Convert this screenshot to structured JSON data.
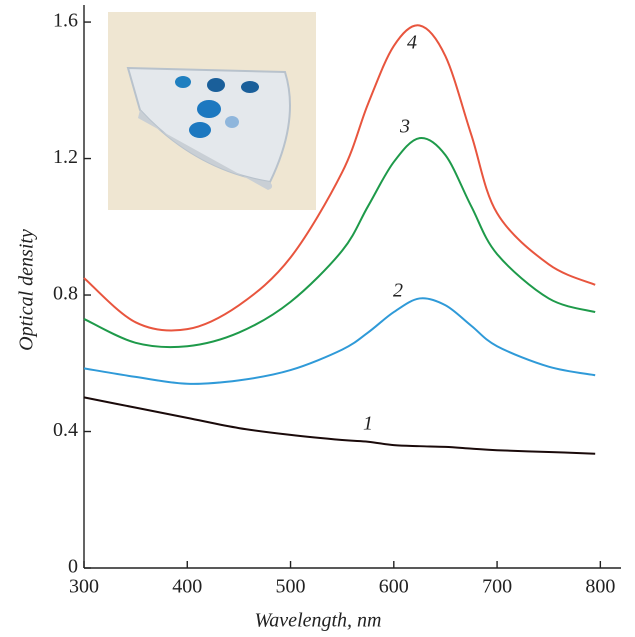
{
  "chart_data": {
    "type": "line",
    "xlabel": "Wavelength, nm",
    "ylabel": "Optical density",
    "x": [
      300,
      350,
      400,
      450,
      500,
      550,
      575,
      600,
      625,
      650,
      675,
      700,
      750,
      795
    ],
    "series": [
      {
        "name": "1",
        "color": "#1a0a0a",
        "values": [
          0.5,
          0.47,
          0.44,
          0.41,
          0.39,
          0.375,
          0.37,
          0.36,
          0.357,
          0.355,
          0.35,
          0.345,
          0.34,
          0.335
        ]
      },
      {
        "name": "2",
        "color": "#2f9ad8",
        "values": [
          0.585,
          0.56,
          0.54,
          0.55,
          0.58,
          0.64,
          0.69,
          0.75,
          0.79,
          0.77,
          0.71,
          0.65,
          0.59,
          0.565
        ]
      },
      {
        "name": "3",
        "color": "#1e9a4a",
        "values": [
          0.73,
          0.66,
          0.65,
          0.69,
          0.78,
          0.93,
          1.06,
          1.19,
          1.26,
          1.21,
          1.06,
          0.92,
          0.79,
          0.75
        ]
      },
      {
        "name": "4",
        "color": "#e8553e",
        "values": [
          0.85,
          0.72,
          0.7,
          0.77,
          0.91,
          1.16,
          1.36,
          1.53,
          1.59,
          1.5,
          1.27,
          1.04,
          0.89,
          0.83
        ]
      }
    ],
    "xlim": [
      300,
      820
    ],
    "ylim": [
      0,
      1.65
    ],
    "xticks": [
      300,
      400,
      500,
      600,
      700,
      800
    ],
    "yticks": [
      0,
      0.4,
      0.8,
      1.2,
      1.6
    ]
  }
}
